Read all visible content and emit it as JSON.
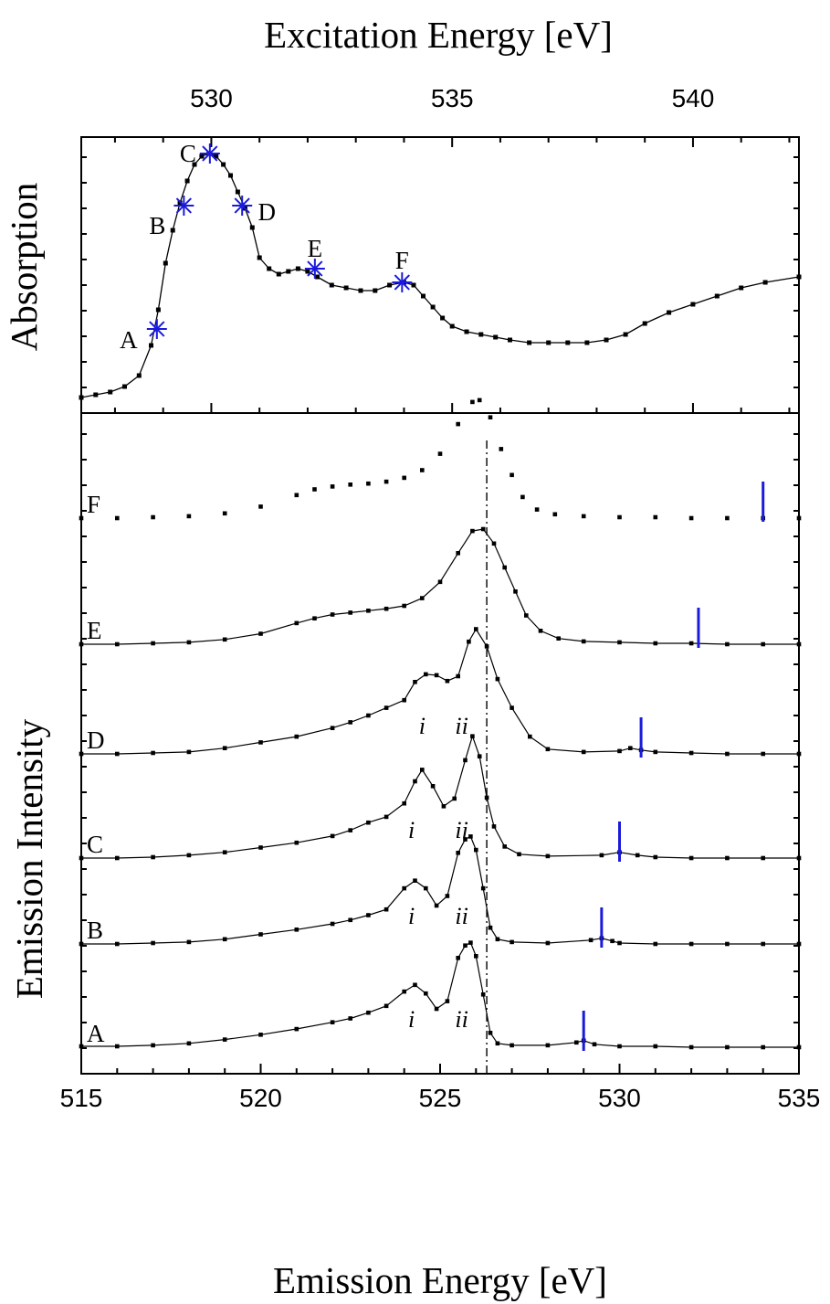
{
  "chart_data": [
    {
      "panel": "absorption",
      "type": "line",
      "x_axis_label": "Excitation Energy [eV]",
      "y_axis_label": "Absorption",
      "xlim": [
        527.3,
        542.2
      ],
      "ylim": [
        0,
        1
      ],
      "x_ticks": [
        530,
        535,
        540
      ],
      "grid": false,
      "marker_color": "#1a1adc",
      "series": [
        {
          "x": [
            527.3,
            527.6,
            527.9,
            528.2,
            528.5,
            528.75,
            528.9,
            529.05,
            529.2,
            529.35,
            529.5,
            529.65,
            529.8,
            529.95,
            530.1,
            530.25,
            530.4,
            530.55,
            530.7,
            530.85,
            531.0,
            531.2,
            531.4,
            531.6,
            531.8,
            532.0,
            532.2,
            532.5,
            532.8,
            533.1,
            533.4,
            533.7,
            534.0,
            534.2,
            534.4,
            534.6,
            534.8,
            535.0,
            535.3,
            535.6,
            535.9,
            536.2,
            536.6,
            537.0,
            537.4,
            537.8,
            538.2,
            538.6,
            539.0,
            539.5,
            540.0,
            540.5,
            541.0,
            541.5,
            542.2
          ],
          "y": [
            0.03,
            0.04,
            0.05,
            0.07,
            0.11,
            0.22,
            0.35,
            0.52,
            0.64,
            0.74,
            0.82,
            0.88,
            0.91,
            0.92,
            0.91,
            0.88,
            0.84,
            0.78,
            0.72,
            0.65,
            0.54,
            0.5,
            0.48,
            0.49,
            0.5,
            0.49,
            0.47,
            0.44,
            0.43,
            0.42,
            0.42,
            0.44,
            0.45,
            0.44,
            0.4,
            0.36,
            0.32,
            0.29,
            0.27,
            0.26,
            0.25,
            0.24,
            0.23,
            0.23,
            0.23,
            0.23,
            0.24,
            0.26,
            0.3,
            0.34,
            0.37,
            0.4,
            0.43,
            0.45,
            0.47
          ]
        }
      ],
      "excitation_points": [
        {
          "label": "A",
          "x": 528.87,
          "y": 0.28
        },
        {
          "label": "B",
          "x": 529.43,
          "y": 0.73
        },
        {
          "label": "C",
          "x": 529.97,
          "y": 0.92
        },
        {
          "label": "D",
          "x": 530.64,
          "y": 0.73
        },
        {
          "label": "E",
          "x": 532.15,
          "y": 0.5
        },
        {
          "label": "F",
          "x": 533.96,
          "y": 0.45
        }
      ]
    },
    {
      "panel": "emission",
      "type": "line",
      "x_axis_label": "Emission Energy [eV]",
      "y_axis_label": "Emission Intensity",
      "xlim": [
        515,
        535
      ],
      "x_ticks": [
        515,
        520,
        525,
        530,
        535
      ],
      "reference_line_x": 526.3,
      "grid": false,
      "marker_color": "#1a1adc",
      "series": [
        {
          "name": "A",
          "offset": 0,
          "excitation_marker_x": 529.0,
          "peak_labels": [
            {
              "text": "i",
              "x": 524.2
            },
            {
              "text": "ii",
              "x": 525.6
            }
          ],
          "x": [
            515,
            516,
            517,
            518,
            519,
            520,
            521,
            522,
            522.5,
            523,
            523.5,
            524.0,
            524.3,
            524.6,
            524.9,
            525.2,
            525.5,
            525.7,
            525.85,
            526.0,
            526.2,
            526.4,
            526.6,
            527,
            528,
            528.8,
            529.0,
            529.3,
            530,
            531,
            532,
            533,
            534,
            535
          ],
          "y": [
            0.01,
            0.01,
            0.02,
            0.04,
            0.08,
            0.13,
            0.19,
            0.26,
            0.3,
            0.36,
            0.43,
            0.58,
            0.65,
            0.56,
            0.4,
            0.48,
            0.93,
            1.06,
            1.09,
            0.95,
            0.55,
            0.15,
            0.04,
            0.02,
            0.02,
            0.05,
            0.07,
            0.03,
            0.01,
            0.01,
            0.0,
            0.0,
            0.0,
            0.0
          ]
        },
        {
          "name": "B",
          "offset": 1,
          "excitation_marker_x": 529.5,
          "peak_labels": [
            {
              "text": "i",
              "x": 524.2
            },
            {
              "text": "ii",
              "x": 525.6
            }
          ],
          "x": [
            515,
            516,
            517,
            518,
            519,
            520,
            521,
            522,
            522.5,
            523,
            523.5,
            524.0,
            524.3,
            524.6,
            524.9,
            525.2,
            525.5,
            525.7,
            525.85,
            526.0,
            526.2,
            526.4,
            526.6,
            527,
            528,
            529.2,
            529.5,
            529.8,
            530,
            531,
            532,
            533,
            534,
            535
          ],
          "y": [
            0.0,
            0.0,
            0.01,
            0.02,
            0.05,
            0.1,
            0.15,
            0.21,
            0.25,
            0.3,
            0.36,
            0.58,
            0.66,
            0.58,
            0.4,
            0.5,
            0.95,
            1.09,
            1.12,
            0.98,
            0.58,
            0.17,
            0.05,
            0.02,
            0.01,
            0.04,
            0.06,
            0.03,
            0.01,
            0.0,
            0.0,
            0.0,
            0.0,
            0.0
          ]
        },
        {
          "name": "C",
          "offset": 2,
          "excitation_marker_x": 530.0,
          "peak_labels": [
            {
              "text": "i",
              "x": 524.2
            },
            {
              "text": "ii",
              "x": 525.6
            }
          ],
          "x": [
            515,
            516,
            517,
            518,
            519,
            520,
            521,
            522,
            522.5,
            523,
            523.5,
            524.0,
            524.3,
            524.5,
            524.8,
            525.1,
            525.4,
            525.7,
            525.9,
            526.1,
            526.3,
            526.5,
            526.8,
            527.2,
            528,
            529.5,
            530.0,
            530.5,
            531,
            532,
            533,
            534,
            535
          ],
          "y": [
            0.0,
            0.0,
            0.01,
            0.03,
            0.06,
            0.11,
            0.16,
            0.23,
            0.29,
            0.37,
            0.43,
            0.57,
            0.8,
            0.92,
            0.75,
            0.54,
            0.62,
            1.02,
            1.27,
            1.06,
            0.63,
            0.33,
            0.12,
            0.04,
            0.02,
            0.03,
            0.06,
            0.03,
            0.01,
            0.0,
            0.0,
            0.0,
            0.0
          ]
        },
        {
          "name": "D",
          "offset": 3,
          "excitation_marker_x": 530.6,
          "peak_labels": [
            {
              "text": "i",
              "x": 524.5
            },
            {
              "text": "ii",
              "x": 525.6
            }
          ],
          "x": [
            515,
            516,
            517,
            518,
            519,
            520,
            521,
            522,
            522.5,
            523,
            523.5,
            524.0,
            524.3,
            524.6,
            524.9,
            525.2,
            525.5,
            525.8,
            526.0,
            526.3,
            526.6,
            527.0,
            527.5,
            528,
            529,
            530.0,
            530.3,
            530.6,
            531,
            532,
            533,
            534,
            535
          ],
          "y": [
            0.0,
            0.0,
            0.01,
            0.02,
            0.06,
            0.12,
            0.18,
            0.27,
            0.33,
            0.4,
            0.48,
            0.56,
            0.75,
            0.83,
            0.82,
            0.76,
            0.81,
            1.17,
            1.3,
            1.12,
            0.78,
            0.48,
            0.18,
            0.05,
            0.02,
            0.03,
            0.06,
            0.04,
            0.02,
            0.01,
            0.0,
            0.0,
            0.0
          ]
        },
        {
          "name": "E",
          "offset": 4,
          "excitation_marker_x": 532.2,
          "peak_labels": [],
          "x": [
            515,
            516,
            517,
            518,
            519,
            520,
            521,
            521.5,
            522,
            522.5,
            523,
            523.5,
            524,
            524.5,
            525,
            525.5,
            525.9,
            526.2,
            526.5,
            526.8,
            527.1,
            527.4,
            527.8,
            528.3,
            529,
            530,
            531,
            532,
            533,
            534,
            535
          ],
          "y": [
            0.0,
            0.0,
            0.01,
            0.02,
            0.05,
            0.11,
            0.22,
            0.27,
            0.31,
            0.33,
            0.35,
            0.37,
            0.4,
            0.48,
            0.65,
            0.95,
            1.18,
            1.2,
            1.05,
            0.8,
            0.55,
            0.3,
            0.14,
            0.06,
            0.03,
            0.02,
            0.01,
            0.01,
            0.0,
            0.0,
            0.0
          ]
        },
        {
          "name": "F",
          "offset": 5,
          "excitation_marker_x": 534.0,
          "peak_labels": [],
          "x": [
            515,
            516,
            517,
            518,
            519,
            520,
            521,
            521.5,
            522,
            522.5,
            523,
            523.5,
            524,
            524.5,
            525,
            525.5,
            525.9,
            526.1,
            526.4,
            526.7,
            527,
            527.3,
            527.7,
            528.2,
            529,
            530,
            531,
            532,
            533,
            534,
            535
          ],
          "y": [
            0.0,
            0.0,
            0.01,
            0.02,
            0.05,
            0.12,
            0.24,
            0.3,
            0.33,
            0.35,
            0.36,
            0.38,
            0.42,
            0.5,
            0.67,
            0.98,
            1.21,
            1.23,
            1.05,
            0.72,
            0.45,
            0.22,
            0.09,
            0.04,
            0.02,
            0.01,
            0.01,
            0.0,
            0.0,
            0.0,
            0.0
          ]
        }
      ]
    }
  ]
}
